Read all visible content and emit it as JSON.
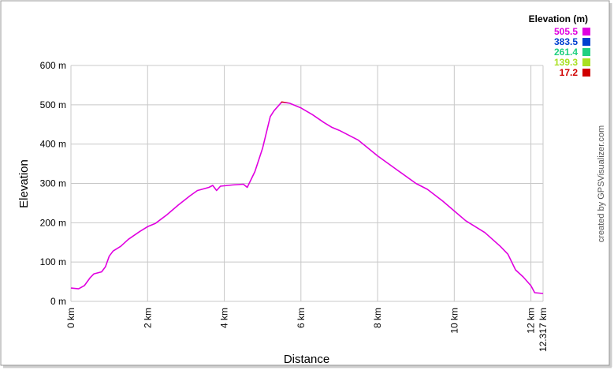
{
  "chart_data": {
    "type": "line",
    "y_label": "Elevation",
    "x_label": "Distance",
    "credit": "created by GPSVisualizer.com",
    "legend_title": "Elevation (m)",
    "color_scale": [
      {
        "value": 505.5,
        "color": "#e000e0"
      },
      {
        "value": 383.5,
        "color": "#0040d0"
      },
      {
        "value": 261.4,
        "color": "#20d080"
      },
      {
        "value": 139.3,
        "color": "#a8e020"
      },
      {
        "value": 17.2,
        "color": "#d00000"
      }
    ],
    "xlim": [
      0,
      12.317
    ],
    "ylim": [
      0,
      600
    ],
    "xticks": [
      {
        "value": 0,
        "label": "0 km"
      },
      {
        "value": 2,
        "label": "2 km"
      },
      {
        "value": 4,
        "label": "4 km"
      },
      {
        "value": 6,
        "label": "6 km"
      },
      {
        "value": 8,
        "label": "8 km"
      },
      {
        "value": 10,
        "label": "10 km"
      },
      {
        "value": 12,
        "label": "12 km"
      },
      {
        "value": 12.317,
        "label": "12.317 km"
      }
    ],
    "yticks": [
      {
        "value": 0,
        "label": "0 m"
      },
      {
        "value": 100,
        "label": "100 m"
      },
      {
        "value": 200,
        "label": "200 m"
      },
      {
        "value": 300,
        "label": "300 m"
      },
      {
        "value": 400,
        "label": "400 m"
      },
      {
        "value": 500,
        "label": "500 m"
      },
      {
        "value": 600,
        "label": "600 m"
      }
    ],
    "grid": true,
    "x": [
      0,
      0.2,
      0.35,
      0.5,
      0.6,
      0.8,
      0.9,
      1.0,
      1.1,
      1.3,
      1.5,
      1.8,
      2.0,
      2.2,
      2.5,
      2.8,
      3.1,
      3.3,
      3.6,
      3.7,
      3.8,
      3.9,
      4.2,
      4.5,
      4.6,
      4.8,
      5.0,
      5.2,
      5.3,
      5.5,
      5.7,
      6.0,
      6.3,
      6.6,
      6.8,
      7.0,
      7.5,
      8.0,
      8.5,
      9.0,
      9.3,
      9.7,
      10.0,
      10.3,
      10.8,
      11.2,
      11.4,
      11.6,
      11.8,
      12.0,
      12.1,
      12.317
    ],
    "values": [
      34,
      32,
      40,
      60,
      70,
      75,
      88,
      115,
      128,
      140,
      158,
      178,
      190,
      198,
      220,
      245,
      268,
      282,
      290,
      295,
      282,
      293,
      296,
      298,
      290,
      330,
      390,
      470,
      485,
      507,
      504,
      492,
      475,
      455,
      443,
      435,
      410,
      370,
      335,
      300,
      285,
      255,
      230,
      205,
      175,
      140,
      120,
      80,
      62,
      40,
      22,
      20
    ]
  }
}
